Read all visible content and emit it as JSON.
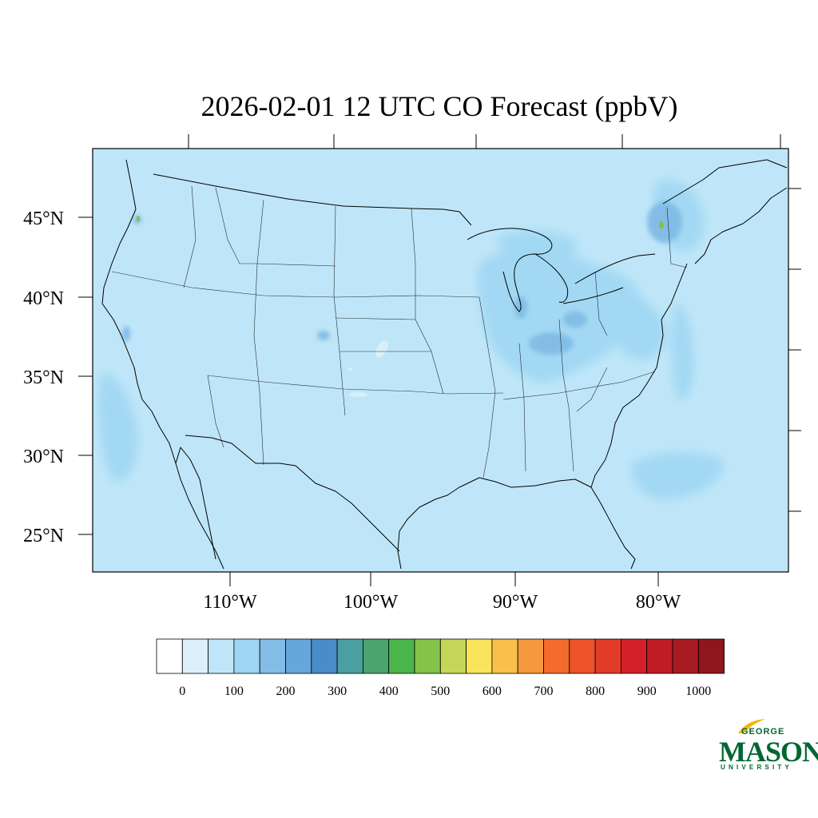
{
  "title": "2026-02-01 12 UTC CO Forecast (ppbV)",
  "lat_labels": [
    "45°N",
    "40°N",
    "35°N",
    "30°N",
    "25°N"
  ],
  "lon_labels": [
    "110°W",
    "100°W",
    "90°W",
    "80°W"
  ],
  "colorbar": {
    "tick_labels": [
      "0",
      "100",
      "200",
      "300",
      "400",
      "500",
      "600",
      "700",
      "800",
      "900",
      "1000"
    ],
    "colors": [
      "#ffffff",
      "#dbf0fb",
      "#bfe6f8",
      "#9ed6f3",
      "#83bde6",
      "#67a6da",
      "#4a8bc9",
      "#4a9fa0",
      "#4aa46e",
      "#4ab54a",
      "#85c24a",
      "#c4d65a",
      "#f9e45c",
      "#f8c04a",
      "#f5983e",
      "#f36c2e",
      "#ed5228",
      "#e23b27",
      "#d42129",
      "#c01c26",
      "#a81a22",
      "#8e161c"
    ]
  },
  "legend_marks": {
    "map_background": "#bfe6f8",
    "elevated_shading": "#9ed6f3",
    "hotspot": "#83bde6",
    "peak": "#85c24a"
  },
  "logo": {
    "george": "GEORGE",
    "mason": "MASON",
    "university": "UNIVERSITY"
  }
}
